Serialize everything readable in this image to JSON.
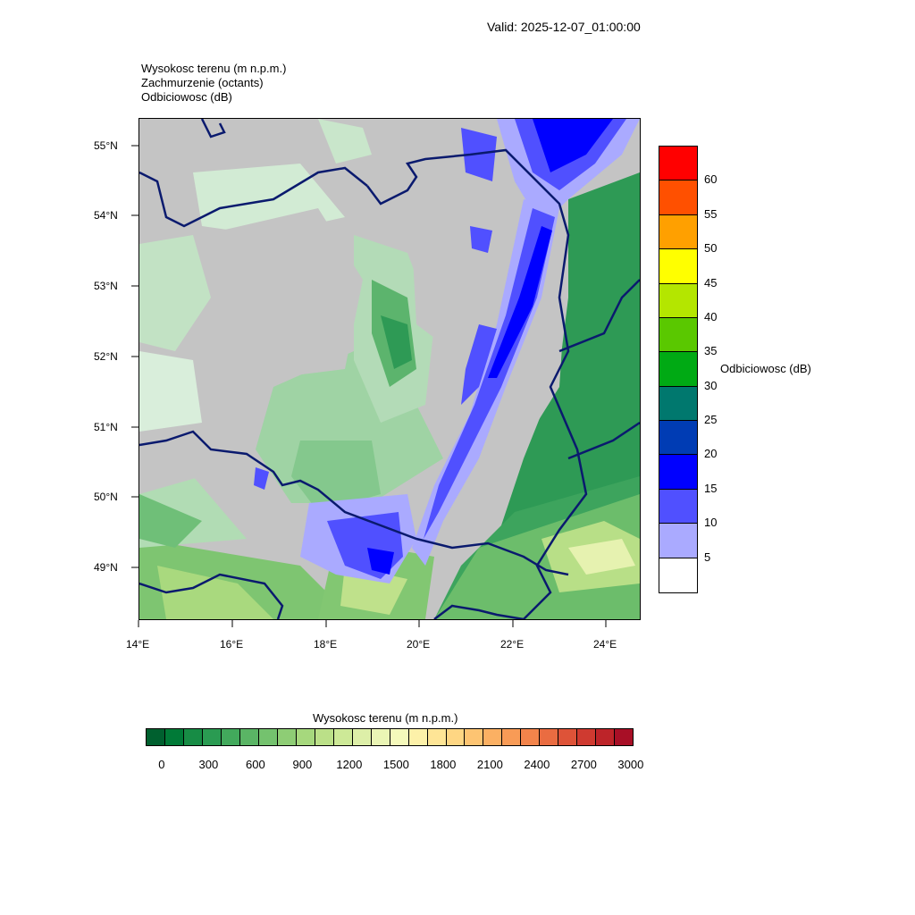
{
  "header": {
    "valid_label": "Valid: 2025-12-07_01:00:00",
    "titles": [
      "Wysokosc terenu   (m n.p.m.)",
      "Zachmurzenie   (octants)",
      "Odbiciowosc   (dB)"
    ]
  },
  "map": {
    "lat_labels": [
      "55°N",
      "54°N",
      "53°N",
      "52°N",
      "51°N",
      "50°N",
      "49°N"
    ],
    "lon_labels": [
      "14°E",
      "16°E",
      "18°E",
      "20°E",
      "22°E",
      "24°E"
    ],
    "lat_range": [
      48.25,
      55.4
    ],
    "lon_range": [
      14.0,
      24.75
    ],
    "border_color": "#0a1a6e",
    "cloud_color": "#c4c4c4"
  },
  "reflectivity_legend": {
    "title": "Odbiciowosc  (dB)",
    "labels": [
      "60",
      "55",
      "50",
      "45",
      "40",
      "35",
      "30",
      "25",
      "20",
      "15",
      "10",
      "5"
    ],
    "colors_top_to_bottom": [
      "#ff0000",
      "#ff5000",
      "#ffa000",
      "#ffff00",
      "#b4e600",
      "#5ac800",
      "#00aa14",
      "#00786e",
      "#003cb4",
      "#0000ff",
      "#5050ff",
      "#aaaaff",
      "#ffffff"
    ]
  },
  "terrain_legend": {
    "title": "Wysokosc terenu  (m n.p.m.)",
    "labels": [
      "0",
      "300",
      "600",
      "900",
      "1200",
      "1500",
      "1800",
      "2100",
      "2400",
      "2700",
      "3000"
    ],
    "colors": [
      "#00602f",
      "#007a37",
      "#178c45",
      "#2a9b52",
      "#42a95c",
      "#5ab565",
      "#74c26e",
      "#8ecd75",
      "#a6d87d",
      "#bbe088",
      "#cde997",
      "#ddefa8",
      "#eaf5b5",
      "#f5f9bb",
      "#fdf1a9",
      "#fee596",
      "#fed683",
      "#fdc472",
      "#fbb063",
      "#f89b56",
      "#f3844b",
      "#ea6c41",
      "#de5338",
      "#cf3a30",
      "#bd2429",
      "#a80f26"
    ]
  }
}
